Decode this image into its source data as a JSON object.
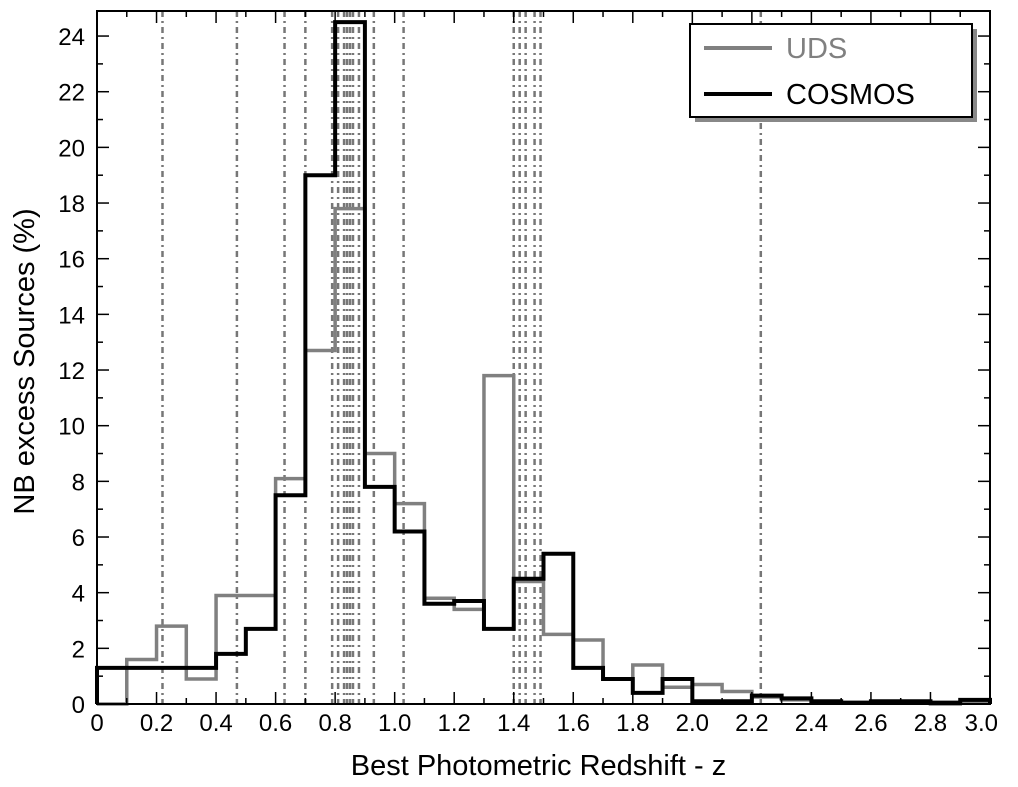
{
  "chart_data": {
    "type": "histogram-step",
    "xlabel": "Best Photometric Redshift - z",
    "ylabel": "NB excess Sources (%)",
    "xlim": [
      0,
      3.0
    ],
    "ylim": [
      0,
      24.9
    ],
    "x_ticks": [
      0,
      0.2,
      0.4,
      0.6,
      0.8,
      1.0,
      1.2,
      1.4,
      1.6,
      1.8,
      2.0,
      2.2,
      2.4,
      2.6,
      2.8,
      3.0
    ],
    "x_tick_labels": [
      "0",
      "0.2",
      "0.4",
      "0.6",
      "0.8",
      "1.0",
      "1.2",
      "1.4",
      "1.6",
      "1.8",
      "2.0",
      "2.2",
      "2.4",
      "2.6",
      "2.8",
      "3.0"
    ],
    "y_ticks": [
      0,
      2,
      4,
      6,
      8,
      10,
      12,
      14,
      16,
      18,
      20,
      22,
      24
    ],
    "y_tick_labels": [
      "0",
      "2",
      "4",
      "6",
      "8",
      "10",
      "12",
      "14",
      "16",
      "18",
      "20",
      "22",
      "24"
    ],
    "legend_position": "top-right",
    "grid": false,
    "vertical_dotted_lines_z": [
      0.22,
      0.47,
      0.63,
      0.7,
      0.79,
      0.81,
      0.83,
      0.84,
      0.85,
      0.86,
      0.88,
      0.93,
      1.03,
      1.4,
      1.42,
      1.44,
      1.47,
      1.49,
      2.23
    ],
    "series": [
      {
        "name": "UDS",
        "color": "#808080",
        "bin_edges": [
          0,
          0.1,
          0.2,
          0.3,
          0.4,
          0.5,
          0.6,
          0.7,
          0.8,
          0.9,
          1.0,
          1.1,
          1.2,
          1.3,
          1.4,
          1.5,
          1.6,
          1.7,
          1.8,
          1.9,
          2.0,
          2.1,
          2.2,
          2.3,
          2.4,
          2.5,
          2.6,
          2.7,
          2.8,
          2.9,
          3.0
        ],
        "values": [
          0.0,
          1.6,
          2.8,
          0.9,
          3.9,
          3.9,
          8.1,
          12.7,
          17.8,
          9.0,
          7.2,
          3.8,
          3.4,
          11.8,
          4.4,
          2.5,
          2.3,
          0.9,
          1.4,
          0.6,
          0.7,
          0.45,
          0.25,
          0.15,
          0.1,
          0.05,
          0.05,
          0.05,
          0.0,
          0.1
        ]
      },
      {
        "name": "COSMOS",
        "color": "#000000",
        "bin_edges": [
          0,
          0.1,
          0.2,
          0.3,
          0.4,
          0.5,
          0.6,
          0.7,
          0.8,
          0.9,
          1.0,
          1.1,
          1.2,
          1.3,
          1.4,
          1.5,
          1.6,
          1.7,
          1.8,
          1.9,
          2.0,
          2.1,
          2.2,
          2.3,
          2.4,
          2.5,
          2.6,
          2.7,
          2.8,
          2.9,
          3.0
        ],
        "values": [
          1.3,
          1.3,
          1.3,
          1.3,
          1.8,
          2.7,
          7.5,
          19.0,
          24.5,
          7.8,
          6.2,
          3.6,
          3.7,
          2.7,
          4.5,
          5.4,
          1.3,
          0.9,
          0.4,
          0.9,
          0.1,
          0.1,
          0.3,
          0.2,
          0.1,
          0.05,
          0.1,
          0.1,
          0.05,
          0.15
        ]
      }
    ]
  }
}
